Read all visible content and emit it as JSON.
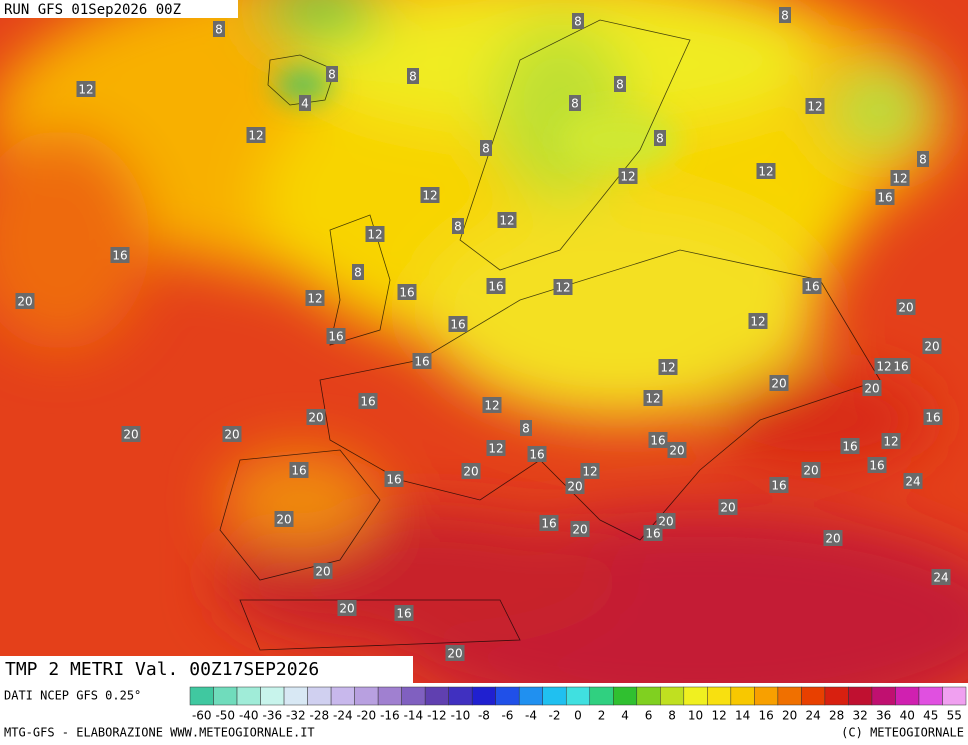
{
  "header": {
    "run": "RUN GFS 01Sep2026 00Z"
  },
  "map_labels": [
    12,
    8,
    8,
    4,
    8,
    12,
    8,
    8,
    8,
    8,
    8,
    12,
    8,
    12,
    12,
    12,
    8,
    12,
    16,
    12,
    8,
    12,
    16,
    8,
    12,
    16,
    16,
    12,
    16,
    20,
    20,
    16,
    12,
    16,
    20,
    16,
    12,
    12,
    16,
    20,
    20,
    16,
    12,
    20,
    12,
    16,
    20,
    20,
    8,
    16,
    12,
    12,
    20,
    16,
    16,
    16,
    16,
    20,
    20,
    16,
    12,
    20,
    24,
    16,
    20,
    20,
    16,
    20,
    20,
    16,
    20,
    20,
    24,
    20,
    16,
    20
  ],
  "legend": {
    "labels": [
      -60,
      -50,
      -40,
      -36,
      -32,
      -28,
      -24,
      -20,
      -16,
      -14,
      -12,
      -10,
      -8,
      -6,
      -4,
      -2,
      0,
      2,
      4,
      6,
      8,
      10,
      12,
      14,
      16,
      20,
      24,
      28,
      32,
      36,
      40,
      45,
      55
    ],
    "colors": [
      "#40c8a0",
      "#70dcbc",
      "#a0ecd8",
      "#c8f4ec",
      "#d8e8f4",
      "#d0d0f0",
      "#c8b8ec",
      "#b8a0e0",
      "#a080d0",
      "#8060c0",
      "#6040b0",
      "#4030c0",
      "#2020d0",
      "#2050e8",
      "#2090f0",
      "#20c0f0",
      "#40e0e0",
      "#30d080",
      "#30c030",
      "#80d020",
      "#c0e020",
      "#f0f020",
      "#f8e010",
      "#f8c800",
      "#f8a000",
      "#f07000",
      "#e84000",
      "#d82010",
      "#c01030",
      "#c01070",
      "#d020b0",
      "#e050e0",
      "#f0a0f0"
    ]
  },
  "footer": {
    "title": "TMP 2 METRI Val. 00Z17SEP2026",
    "source": "DATI NCEP GFS 0.25°",
    "credits": "MTG-GFS - ELABORAZIONE WWW.METEOGIORNALE.IT",
    "copyright": "(C) METEOGIORNALE"
  }
}
